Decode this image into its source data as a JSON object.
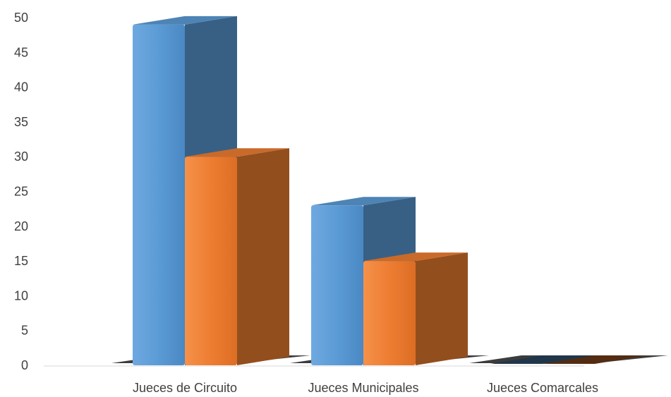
{
  "chart_data": {
    "type": "bar",
    "title": "",
    "xlabel": "",
    "ylabel": "",
    "categories": [
      "Jueces de Circuito",
      "Jueces Municipales",
      "Jueces Comarcales"
    ],
    "series": [
      {
        "values": [
          49,
          23,
          0
        ],
        "color": "#5b9bd5"
      },
      {
        "values": [
          30,
          15,
          0
        ],
        "color": "#ed7d31"
      }
    ],
    "ylim": [
      0,
      50
    ],
    "yticks": [
      0,
      5,
      10,
      15,
      20,
      25,
      30,
      35,
      40,
      45,
      50
    ],
    "grid": false,
    "legend": "none",
    "style": "3d-column"
  }
}
